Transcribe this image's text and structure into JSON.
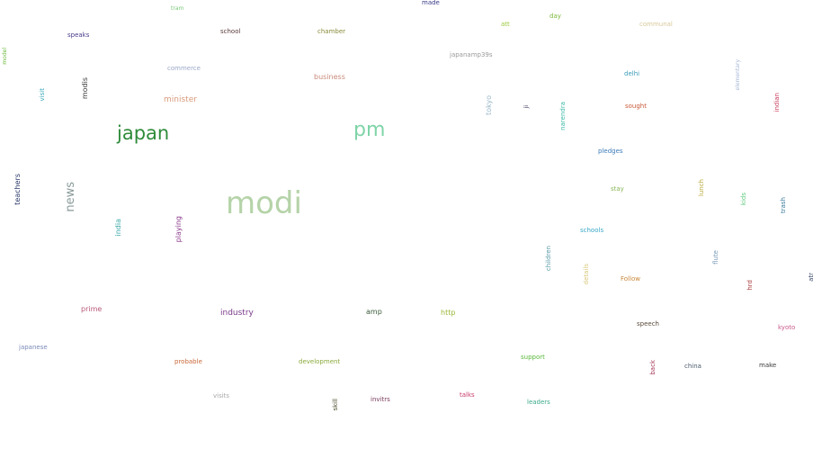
{
  "words": [
    {
      "text": "modi",
      "color": "#b5d3a8"
    },
    {
      "text": "pm",
      "color": "#7fd4a8"
    },
    {
      "text": "japan",
      "color": "#2e8b3a"
    },
    {
      "text": "news",
      "color": "#8a9a9a"
    },
    {
      "text": "teachers",
      "color": "#2a3a6a"
    },
    {
      "text": "india",
      "color": "#3aa8a8"
    },
    {
      "text": "playing",
      "color": "#8a3a8a"
    },
    {
      "text": "modis",
      "color": "#3a3a3a"
    },
    {
      "text": "visit",
      "color": "#3aa8b8"
    },
    {
      "text": "model",
      "color": "#6ab83a"
    },
    {
      "text": "speaks",
      "color": "#4a3a8a"
    },
    {
      "text": "tram",
      "color": "#7ac87a"
    },
    {
      "text": "school",
      "color": "#5a3a3a"
    },
    {
      "text": "chamber",
      "color": "#8a8a3a"
    },
    {
      "text": "made",
      "color": "#3a3a8a"
    },
    {
      "text": "commerce",
      "color": "#9aa8c8"
    },
    {
      "text": "minister",
      "color": "#d89a7a"
    },
    {
      "text": "business",
      "color": "#c88a7a"
    },
    {
      "text": "japanamp39s",
      "color": "#9a9a9a"
    },
    {
      "text": "att",
      "color": "#9ac83a"
    },
    {
      "text": "day",
      "color": "#7ab83a"
    },
    {
      "text": "communal",
      "color": "#d8c89a"
    },
    {
      "text": "delhi",
      "color": "#3a9ab8"
    },
    {
      "text": "elementary",
      "color": "#a8b8d8"
    },
    {
      "text": "tokyo",
      "color": "#9ab8c8"
    },
    {
      "text": "ji",
      "color": "#3a3a5a"
    },
    {
      "text": "narendra",
      "color": "#3ab8a8"
    },
    {
      "text": "sought",
      "color": "#c85a3a"
    },
    {
      "text": "indian",
      "color": "#c83a5a"
    },
    {
      "text": "pledges",
      "color": "#3a7ab8"
    },
    {
      "text": "stay",
      "color": "#8ab85a"
    },
    {
      "text": "lunch",
      "color": "#b8a83a"
    },
    {
      "text": "kids",
      "color": "#5ac87a"
    },
    {
      "text": "trash",
      "color": "#3a7a9a"
    },
    {
      "text": "schools",
      "color": "#3aa8c8"
    },
    {
      "text": "children",
      "color": "#5a9aa8"
    },
    {
      "text": "flute",
      "color": "#7a9ab8"
    },
    {
      "text": "details",
      "color": "#d8c87a"
    },
    {
      "text": "Follow",
      "color": "#c8883a"
    },
    {
      "text": "hrd",
      "color": "#a83a3a"
    },
    {
      "text": "atr",
      "color": "#3a4a6a"
    },
    {
      "text": "prime",
      "color": "#b85a7a"
    },
    {
      "text": "industry",
      "color": "#7a3a8a"
    },
    {
      "text": "amp",
      "color": "#3a5a3a"
    },
    {
      "text": "http",
      "color": "#9ab83a"
    },
    {
      "text": "speech",
      "color": "#5a4a3a"
    },
    {
      "text": "kyoto",
      "color": "#c85a8a"
    },
    {
      "text": "japanese",
      "color": "#7a8ab8"
    },
    {
      "text": "probable",
      "color": "#c8683a"
    },
    {
      "text": "development",
      "color": "#8aa83a"
    },
    {
      "text": "support",
      "color": "#5ab83a"
    },
    {
      "text": "back",
      "color": "#a83a5a"
    },
    {
      "text": "china",
      "color": "#4a5a6a"
    },
    {
      "text": "make",
      "color": "#3a3a3a"
    },
    {
      "text": "visits",
      "color": "#a8a8a8"
    },
    {
      "text": "skill",
      "color": "#4a4a2a"
    },
    {
      "text": "invitrs",
      "color": "#7a3a5a"
    },
    {
      "text": "talks",
      "color": "#c83a6a"
    },
    {
      "text": "leaders",
      "color": "#3aa88a"
    }
  ]
}
